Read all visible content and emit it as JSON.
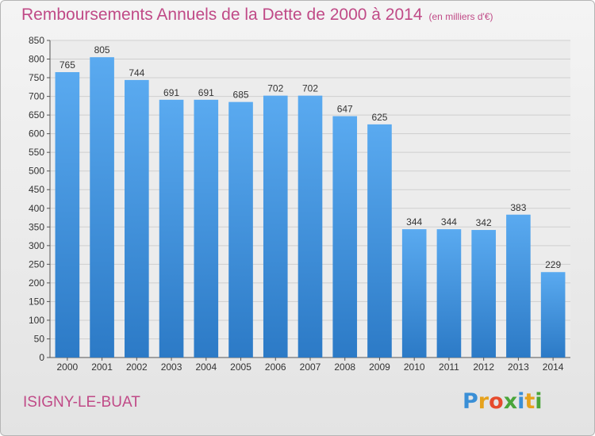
{
  "title": "Remboursements Annuels de la Dette de 2000 à 2014",
  "unit": "(en milliers d'€)",
  "commune": "ISIGNY-LE-BUAT",
  "logo": {
    "text": "Proxiti",
    "letters": [
      {
        "char": "P",
        "color": "#3a8fd6"
      },
      {
        "char": "r",
        "color": "#e6a21d"
      },
      {
        "char": "o",
        "color": "#e64b2d"
      },
      {
        "char": "x",
        "color": "#4aa53a"
      },
      {
        "char": "i",
        "color": "#3a8fd6"
      },
      {
        "char": "t",
        "color": "#e6a21d"
      },
      {
        "char": "i",
        "color": "#4aa53a"
      }
    ]
  },
  "colors": {
    "bar_top": "#5aaaf0",
    "bar_bottom": "#2c7ac6",
    "title": "#c04a87",
    "axis": "#555555",
    "grid": "#cfcfcf",
    "label": "#333333"
  },
  "chart_data": {
    "type": "bar",
    "categories": [
      "2000",
      "2001",
      "2002",
      "2003",
      "2004",
      "2005",
      "2006",
      "2007",
      "2008",
      "2009",
      "2010",
      "2011",
      "2012",
      "2013",
      "2014"
    ],
    "values": [
      765,
      805,
      744,
      691,
      691,
      685,
      702,
      702,
      647,
      625,
      344,
      344,
      342,
      383,
      229
    ],
    "ylim": [
      0,
      850
    ],
    "yticks": [
      0,
      50,
      100,
      150,
      200,
      250,
      300,
      350,
      400,
      450,
      500,
      550,
      600,
      650,
      700,
      750,
      800,
      850
    ],
    "grid": true,
    "xlabel": "",
    "ylabel": ""
  }
}
